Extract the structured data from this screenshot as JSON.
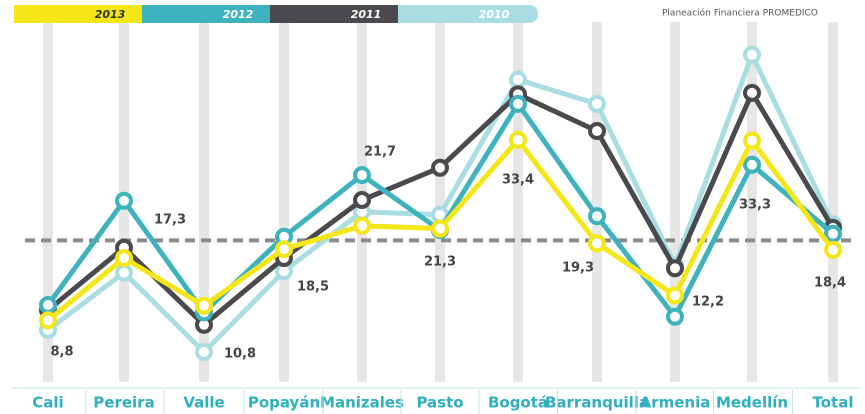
{
  "chart_data": {
    "type": "line",
    "source": "Planeación Financiera PROMEDICO",
    "categories": [
      "Cali",
      "Pereira",
      "Valle",
      "Popayán",
      "Manizales",
      "Pasto",
      "Bogotá",
      "Barranquilla",
      "Armenia",
      "Medellín",
      "Total"
    ],
    "ylim": [
      0,
      47
    ],
    "reference_line": 19.7,
    "series": [
      {
        "name": "2013",
        "color": "#f5e617",
        "text_color": "#333333",
        "values": [
          8.8,
          17.3,
          10.8,
          18.5,
          21.7,
          21.3,
          33.4,
          19.3,
          12.2,
          33.3,
          18.4
        ],
        "value_labels": [
          "8,8",
          "17,3",
          "10,8",
          "18,5",
          "21,7",
          "21,3",
          "33,4",
          "19,3",
          "12,2",
          "33,3",
          "18,4"
        ]
      },
      {
        "name": "2012",
        "color": "#3fb3bd",
        "text_color": "#ffffff",
        "values": [
          10.9,
          25.1,
          9.9,
          20.2,
          28.6,
          21.1,
          38.3,
          23.0,
          9.3,
          30.0,
          20.6
        ]
      },
      {
        "name": "2011",
        "color": "#4a4a4e",
        "text_color": "#ffffff",
        "values": [
          10.2,
          18.7,
          8.2,
          17.3,
          25.2,
          29.6,
          39.6,
          34.6,
          15.9,
          39.8,
          21.4
        ]
      },
      {
        "name": "2010",
        "color": "#a9dde2",
        "text_color": "#ffffff",
        "values": [
          7.5,
          15.3,
          4.5,
          15.5,
          23.6,
          23.2,
          41.6,
          38.3,
          16.3,
          45.0,
          21.9
        ]
      }
    ]
  }
}
